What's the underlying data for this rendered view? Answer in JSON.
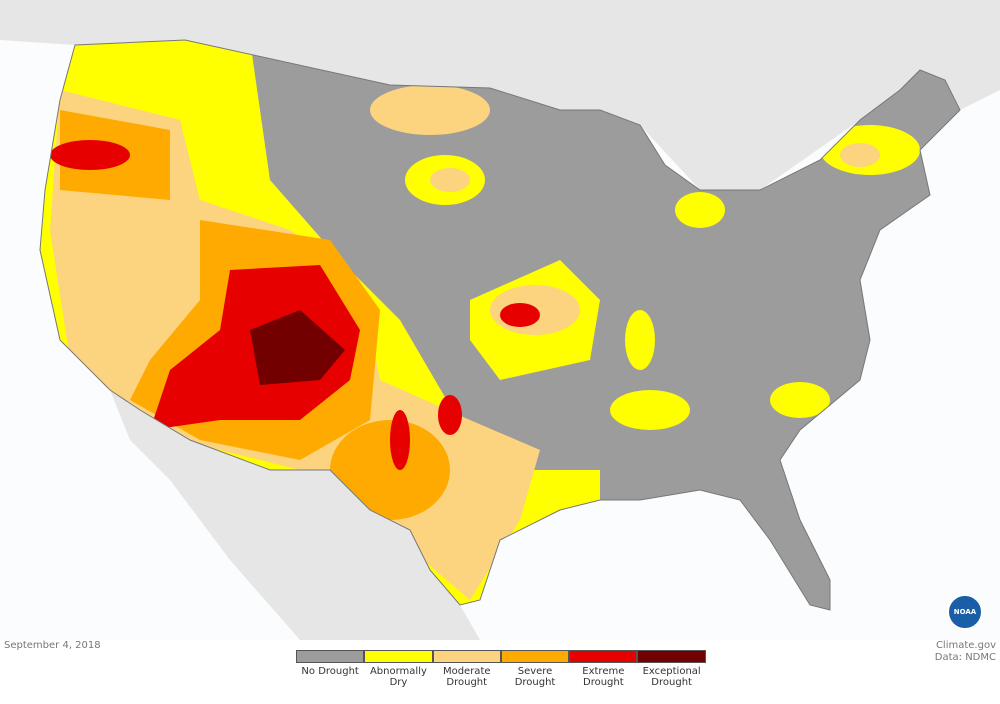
{
  "date": "September 4, 2018",
  "credit": {
    "source": "Climate.gov",
    "data": "Data: NDMC"
  },
  "logo": "NOAA",
  "legend": [
    {
      "label": "No Drought",
      "color": "#9c9c9c"
    },
    {
      "label": "Abnormally Dry",
      "color": "#ffff00"
    },
    {
      "label": "Moderate Drought",
      "color": "#fcd37f"
    },
    {
      "label": "Severe Drought",
      "color": "#ffaa00"
    },
    {
      "label": "Extreme Drought",
      "color": "#e60000"
    },
    {
      "label": "Exceptional Drought",
      "color": "#730000"
    }
  ]
}
